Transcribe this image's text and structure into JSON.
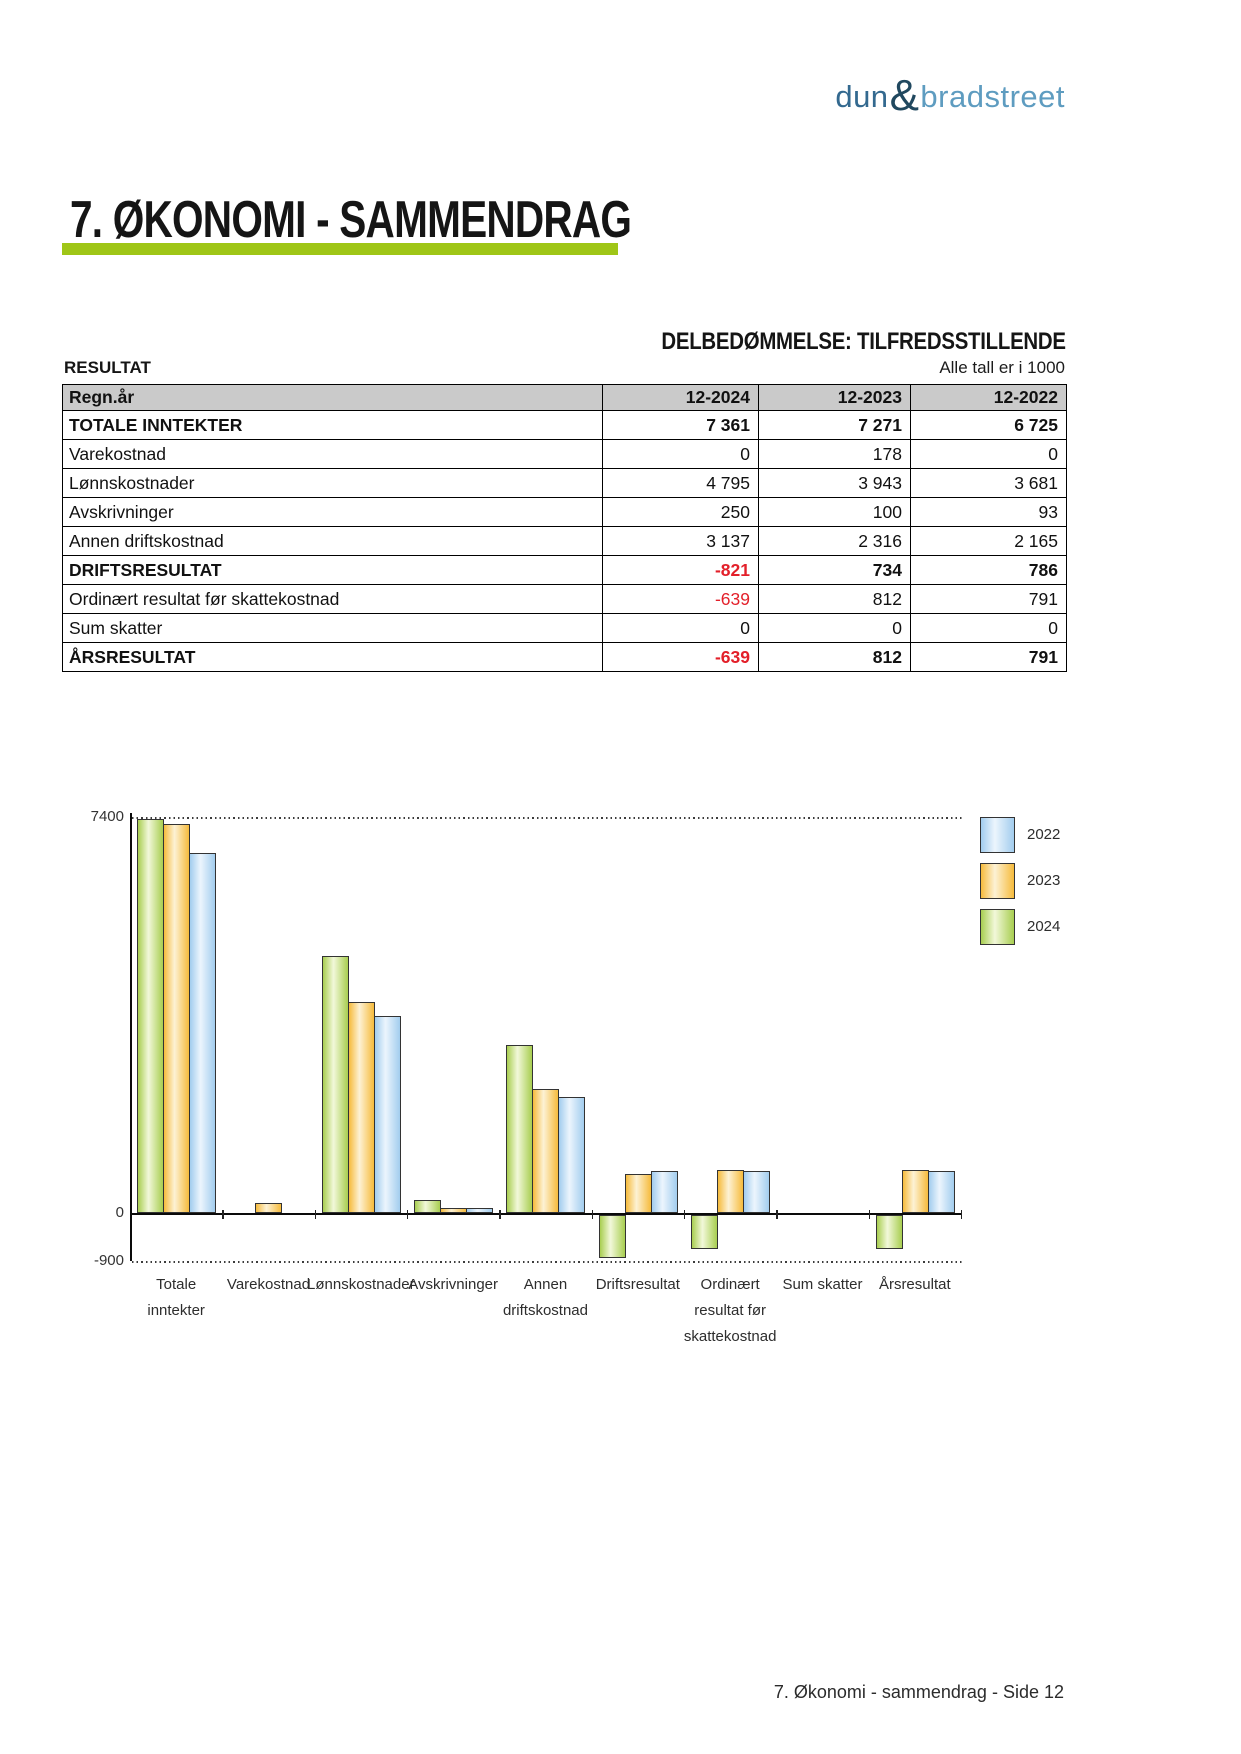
{
  "logo": {
    "dun": "dun",
    "ampersand": "&",
    "bradstreet": "bradstreet"
  },
  "page": {
    "title": "7. ØKONOMI - SAMMENDRAG",
    "assessment": "DELBEDØMMELSE: TILFREDSSTILLENDE",
    "section_label": "RESULTAT",
    "units_note": "Alle tall er i 1000",
    "footer": "7. Økonomi - sammendrag - Side 12"
  },
  "colors": {
    "accent_green": "#9fc617",
    "negative_red": "#e3202a",
    "table_header_bg": "#cacaca",
    "logo_dun": "#33698f",
    "logo_ampersand": "#20485f",
    "logo_bradstreet": "#5e9cc0"
  },
  "table": {
    "header": [
      "Regn.år",
      "12-2024",
      "12-2023",
      "12-2022"
    ],
    "rows": [
      {
        "label": "TOTALE INNTEKTER",
        "values": [
          "7 361",
          "7 271",
          "6 725"
        ],
        "emphasis": true
      },
      {
        "label": "Varekostnad",
        "values": [
          "0",
          "178",
          "0"
        ],
        "emphasis": false
      },
      {
        "label": "Lønnskostnader",
        "values": [
          "4 795",
          "3 943",
          "3 681"
        ],
        "emphasis": false
      },
      {
        "label": "Avskrivninger",
        "values": [
          "250",
          "100",
          "93"
        ],
        "emphasis": false
      },
      {
        "label": "Annen driftskostnad",
        "values": [
          "3 137",
          "2 316",
          "2 165"
        ],
        "emphasis": false
      },
      {
        "label": "DRIFTSRESULTAT",
        "values": [
          "-821",
          "734",
          "786"
        ],
        "emphasis": true
      },
      {
        "label": "Ordinært resultat før skattekostnad",
        "values": [
          "-639",
          "812",
          "791"
        ],
        "emphasis": false
      },
      {
        "label": "Sum skatter",
        "values": [
          "0",
          "0",
          "0"
        ],
        "emphasis": false
      },
      {
        "label": "ÅRSRESULTAT",
        "values": [
          "-639",
          "812",
          "791"
        ],
        "emphasis": true
      }
    ]
  },
  "chart_data": {
    "type": "bar",
    "title": "",
    "categories": [
      [
        "Totale",
        "inntekter"
      ],
      [
        "Varekostnad"
      ],
      [
        "Lønnskostnader"
      ],
      [
        "Avskrivninger"
      ],
      [
        "Annen",
        "driftskostnad"
      ],
      [
        "Driftsresultat"
      ],
      [
        "Ordinært",
        "resultat før",
        "skattekostnad"
      ],
      [
        "Sum skatter"
      ],
      [
        "Årsresultat"
      ]
    ],
    "series": [
      {
        "name": "2024",
        "edge_color": "#a8ce50",
        "mid_color": "#f2f8da",
        "values": [
          7361,
          0,
          4795,
          250,
          3137,
          -821,
          -639,
          0,
          -639
        ]
      },
      {
        "name": "2023",
        "edge_color": "#f6bb3c",
        "mid_color": "#fdf2d5",
        "values": [
          7271,
          178,
          3943,
          100,
          2316,
          734,
          812,
          0,
          812
        ]
      },
      {
        "name": "2022",
        "edge_color": "#a2cdee",
        "mid_color": "#ecf5fd",
        "values": [
          6725,
          0,
          3681,
          93,
          2165,
          786,
          791,
          0,
          791
        ]
      }
    ],
    "legend": [
      "2022",
      "2023",
      "2024"
    ],
    "legend_position": "top-right",
    "grid": "dotted-top-bottom",
    "ylim": [
      -900,
      7400
    ],
    "yticks": [
      {
        "label": "7400",
        "value": 7400
      },
      {
        "label": "0",
        "value": 0
      },
      {
        "label": "-900",
        "value": -900
      }
    ]
  }
}
